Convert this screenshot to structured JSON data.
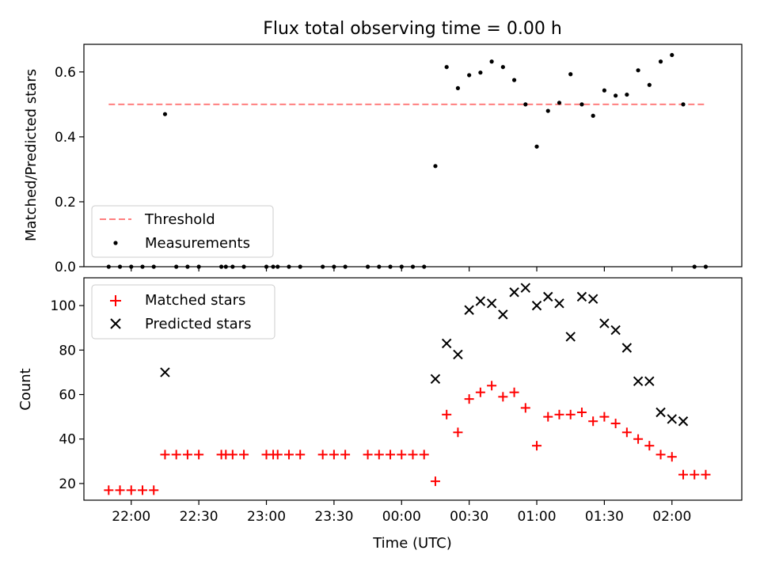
{
  "chart_data": [
    {
      "type": "scatter",
      "title": "Flux total observing time = 0.00 h",
      "xlabel": "",
      "ylabel": "Matched/Predicted stars",
      "ylim": [
        0,
        0.685
      ],
      "yticks": [
        "0.0",
        "0.2",
        "0.4",
        "0.6"
      ],
      "legend_position": "lower-left",
      "threshold": {
        "name": "Threshold",
        "value": 0.5,
        "x_range": [
          "21:50",
          "02:15"
        ],
        "color": "#ff7f7f",
        "style": "dashed"
      },
      "series": [
        {
          "name": "Measurements",
          "color": "#000000",
          "marker": "dot",
          "points": [
            [
              "21:50",
              0
            ],
            [
              "21:55",
              0
            ],
            [
              "22:00",
              0
            ],
            [
              "22:05",
              0
            ],
            [
              "22:10",
              0
            ],
            [
              "22:15",
              0.47
            ],
            [
              "22:20",
              0
            ],
            [
              "22:25",
              0
            ],
            [
              "22:30",
              0
            ],
            [
              "22:40",
              0
            ],
            [
              "22:42",
              0
            ],
            [
              "22:45",
              0
            ],
            [
              "22:50",
              0
            ],
            [
              "23:00",
              0
            ],
            [
              "23:03",
              0
            ],
            [
              "23:05",
              0
            ],
            [
              "23:10",
              0
            ],
            [
              "23:15",
              0
            ],
            [
              "23:25",
              0
            ],
            [
              "23:30",
              0
            ],
            [
              "23:35",
              0
            ],
            [
              "23:45",
              0
            ],
            [
              "23:50",
              0
            ],
            [
              "23:55",
              0
            ],
            [
              "00:00",
              0
            ],
            [
              "00:05",
              0
            ],
            [
              "00:10",
              0
            ],
            [
              "00:15",
              0.31
            ],
            [
              "00:20",
              0.615
            ],
            [
              "00:25",
              0.55
            ],
            [
              "00:30",
              0.59
            ],
            [
              "00:35",
              0.598
            ],
            [
              "00:40",
              0.632
            ],
            [
              "00:45",
              0.615
            ],
            [
              "00:50",
              0.575
            ],
            [
              "00:55",
              0.5
            ],
            [
              "01:00",
              0.37
            ],
            [
              "01:05",
              0.48
            ],
            [
              "01:10",
              0.505
            ],
            [
              "01:15",
              0.593
            ],
            [
              "01:20",
              0.5
            ],
            [
              "01:25",
              0.465
            ],
            [
              "01:30",
              0.543
            ],
            [
              "01:35",
              0.527
            ],
            [
              "01:40",
              0.53
            ],
            [
              "01:45",
              0.605
            ],
            [
              "01:50",
              0.56
            ],
            [
              "01:55",
              0.632
            ],
            [
              "02:00",
              0.652
            ],
            [
              "02:05",
              0.5
            ],
            [
              "02:10",
              0
            ],
            [
              "02:15",
              0
            ]
          ]
        }
      ]
    },
    {
      "type": "scatter",
      "title": "",
      "xlabel": "Time (UTC)",
      "ylabel": "Count",
      "ylim": [
        12.5,
        112.5
      ],
      "yticks": [
        "20",
        "40",
        "60",
        "80",
        "100"
      ],
      "xlim": [
        "21:39",
        "02:31"
      ],
      "xticks": [
        "22:00",
        "22:30",
        "23:00",
        "23:30",
        "00:00",
        "00:30",
        "01:00",
        "01:30",
        "02:00"
      ],
      "legend_position": "upper-left",
      "series": [
        {
          "name": "Matched stars",
          "color": "#ff0000",
          "marker": "plus",
          "points": [
            [
              "21:50",
              17
            ],
            [
              "21:55",
              17
            ],
            [
              "22:00",
              17
            ],
            [
              "22:05",
              17
            ],
            [
              "22:10",
              17
            ],
            [
              "22:15",
              33
            ],
            [
              "22:20",
              33
            ],
            [
              "22:25",
              33
            ],
            [
              "22:30",
              33
            ],
            [
              "22:40",
              33
            ],
            [
              "22:42",
              33
            ],
            [
              "22:45",
              33
            ],
            [
              "22:50",
              33
            ],
            [
              "23:00",
              33
            ],
            [
              "23:03",
              33
            ],
            [
              "23:05",
              33
            ],
            [
              "23:10",
              33
            ],
            [
              "23:15",
              33
            ],
            [
              "23:25",
              33
            ],
            [
              "23:30",
              33
            ],
            [
              "23:35",
              33
            ],
            [
              "23:45",
              33
            ],
            [
              "23:50",
              33
            ],
            [
              "23:55",
              33
            ],
            [
              "00:00",
              33
            ],
            [
              "00:05",
              33
            ],
            [
              "00:10",
              33
            ],
            [
              "00:15",
              21
            ],
            [
              "00:20",
              51
            ],
            [
              "00:25",
              43
            ],
            [
              "00:30",
              58
            ],
            [
              "00:35",
              61
            ],
            [
              "00:40",
              64
            ],
            [
              "00:45",
              59
            ],
            [
              "00:50",
              61
            ],
            [
              "00:55",
              54
            ],
            [
              "01:00",
              37
            ],
            [
              "01:05",
              50
            ],
            [
              "01:10",
              51
            ],
            [
              "01:15",
              51
            ],
            [
              "01:20",
              52
            ],
            [
              "01:25",
              48
            ],
            [
              "01:30",
              50
            ],
            [
              "01:35",
              47
            ],
            [
              "01:40",
              43
            ],
            [
              "01:45",
              40
            ],
            [
              "01:50",
              37
            ],
            [
              "01:55",
              33
            ],
            [
              "02:00",
              32
            ],
            [
              "02:05",
              24
            ],
            [
              "02:10",
              24
            ],
            [
              "02:15",
              24
            ]
          ]
        },
        {
          "name": "Predicted stars",
          "color": "#000000",
          "marker": "x",
          "points": [
            [
              "22:15",
              70
            ],
            [
              "00:15",
              67
            ],
            [
              "00:20",
              83
            ],
            [
              "00:25",
              78
            ],
            [
              "00:30",
              98
            ],
            [
              "00:35",
              102
            ],
            [
              "00:40",
              101
            ],
            [
              "00:45",
              96
            ],
            [
              "00:50",
              106
            ],
            [
              "00:55",
              108
            ],
            [
              "01:00",
              100
            ],
            [
              "01:05",
              104
            ],
            [
              "01:10",
              101
            ],
            [
              "01:15",
              86
            ],
            [
              "01:20",
              104
            ],
            [
              "01:25",
              103
            ],
            [
              "01:30",
              92
            ],
            [
              "01:35",
              89
            ],
            [
              "01:40",
              81
            ],
            [
              "01:45",
              66
            ],
            [
              "01:50",
              66
            ],
            [
              "01:55",
              52
            ],
            [
              "02:00",
              49
            ],
            [
              "02:05",
              48
            ]
          ]
        }
      ]
    }
  ]
}
